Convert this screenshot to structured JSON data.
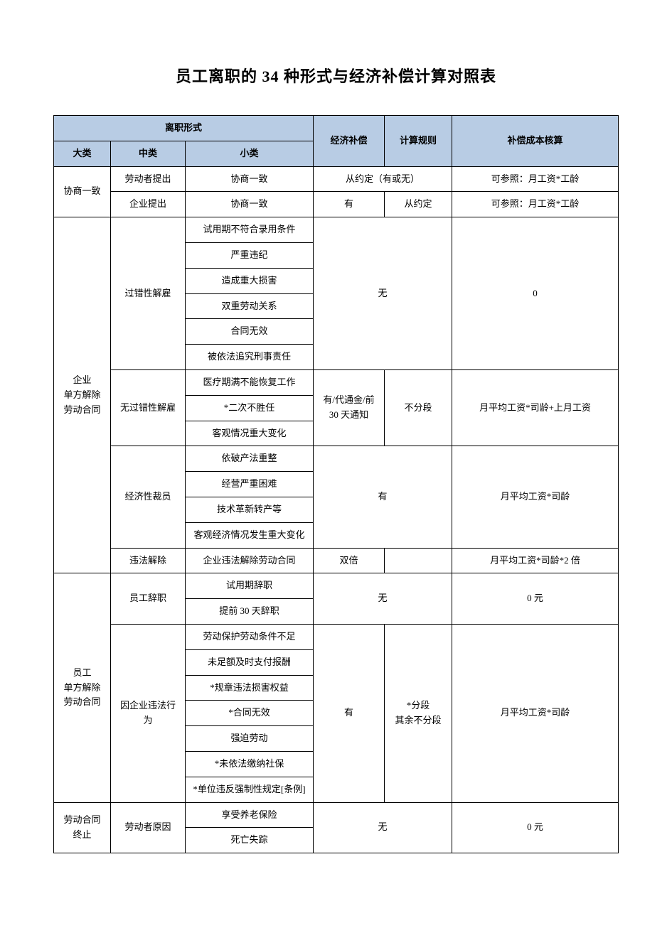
{
  "title": "员工离职的 34 种形式与经济补偿计算对照表",
  "headers": {
    "form": "离职形式",
    "major": "大类",
    "mid": "中类",
    "minor": "小类",
    "comp": "经济补偿",
    "rule": "计算规则",
    "cost": "补偿成本核算"
  },
  "rows": {
    "r1_major": "协商一致",
    "r1_mid": "劳动者提出",
    "r1_minor": "协商一致",
    "r1_comp": "从约定（有或无）",
    "r1_cost": "可参照：月工资*工龄",
    "r2_mid": "企业提出",
    "r2_minor": "协商一致",
    "r2_comp": "有",
    "r2_rule": "从约定",
    "r2_cost": "可参照：月工资*工龄",
    "r3_major": "企业\n单方解除\n劳动合同",
    "r3_mid": "过错性解雇",
    "r3_minor": "试用期不符合录用条件",
    "r4_minor": "严重违纪",
    "r5_minor": "造成重大损害",
    "r6_minor": "双重劳动关系",
    "r7_minor": "合同无效",
    "r8_minor": "被依法追究刑事责任",
    "r3_comp": "无",
    "r3_cost": "0",
    "r9_mid": "无过错性解雇",
    "r9_minor": "医疗期满不能恢复工作",
    "r10_minor": "*二次不胜任",
    "r11_minor": "客观情况重大变化",
    "r9_comp": "有/代通金/前\n30 天通知",
    "r9_rule": "不分段",
    "r9_cost": "月平均工资*司龄+上月工资",
    "r12_mid": "经济性裁员",
    "r12_minor": "依破产法重整",
    "r13_minor": "经营严重困难",
    "r14_minor": "技术革新转产等",
    "r15_minor": "客观经济情况发生重大变化",
    "r12_comp": "有",
    "r12_cost": "月平均工资*司龄",
    "r16_mid": "违法解除",
    "r16_minor": "企业违法解除劳动合同",
    "r16_comp": "双倍",
    "r16_cost": "月平均工资*司龄*2 倍",
    "r17_major": "员工\n单方解除\n劳动合同",
    "r17_mid": "员工辞职",
    "r17_minor": "试用期辞职",
    "r18_minor": "提前 30 天辞职",
    "r17_comp": "无",
    "r17_cost": "0 元",
    "r19_mid": "因企业违法行\n为",
    "r19_minor": "劳动保护劳动条件不足",
    "r20_minor": "未足额及时支付报酬",
    "r21_minor": "*规章违法损害权益",
    "r22_minor": "*合同无效",
    "r23_minor": "强迫劳动",
    "r24_minor": "*未依法缴纳社保",
    "r25_minor": "*单位违反强制性规定[条例]",
    "r19_comp": "有",
    "r19_rule": "*分段\n其余不分段",
    "r19_cost": "月平均工资*司龄",
    "r26_major": "劳动合同\n终止",
    "r26_mid": "劳动者原因",
    "r26_minor": "享受养老保险",
    "r27_minor": "死亡失踪",
    "r26_comp": "无",
    "r26_cost": "0 元"
  },
  "styling": {
    "page_bg": "#ffffff",
    "header_bg": "#b8cce4",
    "border_color": "#000000",
    "text_color": "#000000",
    "title_fontsize": 22,
    "cell_fontsize": 13
  }
}
